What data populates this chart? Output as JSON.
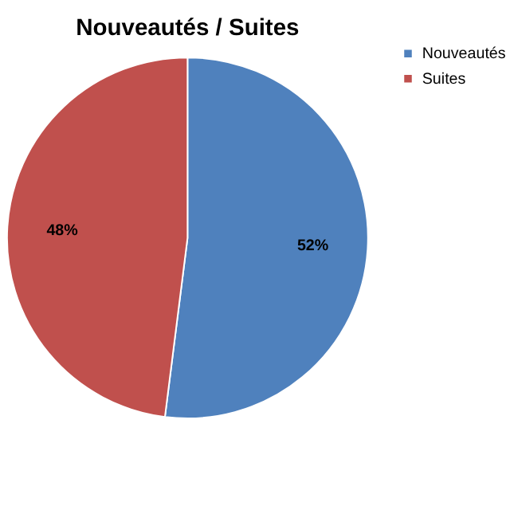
{
  "chart_data": {
    "type": "pie",
    "title": "Nouveautés / Suites",
    "categories": [
      "Nouveautés",
      "Suites"
    ],
    "values": [
      52,
      48
    ],
    "colors": [
      "#4f81bd",
      "#c0504d"
    ],
    "value_labels": [
      "52%",
      "48%"
    ],
    "legend": "right"
  }
}
